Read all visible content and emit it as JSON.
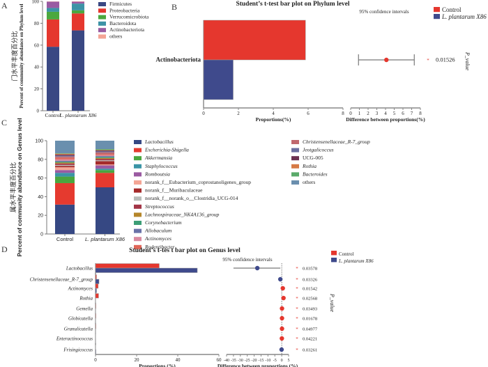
{
  "chart_data": [
    {
      "panel": "A",
      "type": "bar",
      "stacked": true,
      "title": "",
      "ylabel": "门水平丰度百分比 Percent of community abundance on Phylum level",
      "ylabel_cn": "门水平丰度百分比",
      "ylabel_en": "Percent of community abundance on Phylum level",
      "categories": [
        "Control",
        "L. plantarum X86"
      ],
      "category_parts": [
        [
          "Control",
          ""
        ],
        [
          "L. plantarum",
          " X86"
        ]
      ],
      "ylim": [
        0,
        100
      ],
      "yticks": [
        0,
        20,
        40,
        60,
        80,
        100
      ],
      "legend_position": "right",
      "series": [
        {
          "name": "Firmicutes",
          "color": "#3a4883",
          "values": [
            58.5,
            73.5
          ]
        },
        {
          "name": "Proteobacteria",
          "color": "#e5372e",
          "values": [
            25,
            15.5
          ]
        },
        {
          "name": "Verrucomicrobiota",
          "color": "#4ba83f",
          "values": [
            7,
            2.8
          ]
        },
        {
          "name": "Bacteroidota",
          "color": "#3d93a6",
          "values": [
            3.5,
            6.2
          ]
        },
        {
          "name": "Actinobacteriota",
          "color": "#995ba2",
          "values": [
            5.8,
            1.7
          ]
        },
        {
          "name": "others",
          "color": "#f4a495",
          "values": [
            0.2,
            0.3
          ]
        }
      ]
    },
    {
      "panel": "B",
      "type": "bar",
      "orientation": "horizontal",
      "title": "Student’s t-test bar plot on Phylum level",
      "categories": [
        "Actinobacteriota"
      ],
      "xlabel": "Proportions(%)",
      "xlim": [
        0,
        8
      ],
      "xticks": [
        0,
        2,
        4,
        6,
        8
      ],
      "series": [
        {
          "name": "Control",
          "color": "#e5372e",
          "values": [
            5.85
          ]
        },
        {
          "name": "L. plantarum X86",
          "color": "#3f4a8c",
          "values": [
            1.7
          ]
        }
      ],
      "diff": {
        "label": "95% confidence intervals",
        "xlabel": "Difference between proportions(%)",
        "xlim": [
          0,
          8
        ],
        "xticks": [
          0,
          1,
          2,
          3,
          4,
          5,
          6,
          7,
          8
        ],
        "points": [
          {
            "estimate": 4.1,
            "ci": [
              0.9,
              7.3
            ],
            "color": "#e5372e"
          }
        ]
      },
      "p_label": "P_value",
      "p_values": [
        "0.01526"
      ],
      "star": "*",
      "legend_position": "top-right"
    },
    {
      "panel": "C",
      "type": "bar",
      "stacked": true,
      "ylabel_cn": "属水平丰度百分比",
      "ylabel_en": "Percent of community abundance on Genus level",
      "categories": [
        "Control",
        "L. plantarum X86"
      ],
      "ylim": [
        0,
        100
      ],
      "yticks": [
        0,
        20,
        40,
        60,
        80,
        100
      ],
      "legend_position": "right",
      "series": [
        {
          "name": "Lactobacillus",
          "color": "#364883",
          "values": [
            31.5,
            50
          ]
        },
        {
          "name": "Escherichia-Shigella",
          "color": "#e53a2f",
          "values": [
            23,
            15.5
          ]
        },
        {
          "name": "Akkermansia",
          "color": "#4aa63e",
          "values": [
            7,
            3
          ]
        },
        {
          "name": "Staphylococcus",
          "color": "#3b95a6",
          "values": [
            4,
            1.5
          ]
        },
        {
          "name": "Romboutsia",
          "color": "#9a5aa1",
          "values": [
            3,
            3.5
          ]
        },
        {
          "name": "norank_f__Eubacterium_coprostanoligenes_group",
          "color": "#f4a696",
          "values": [
            3,
            1
          ]
        },
        {
          "name": "norank_f__Muribaculaceae",
          "color": "#a52a2a",
          "values": [
            1.5,
            3.5
          ]
        },
        {
          "name": "norank_f__norank_o__Clostridia_UCG-014",
          "color": "#b8bbb8",
          "values": [
            1,
            1
          ]
        },
        {
          "name": "Streptococcus",
          "color": "#a33546",
          "values": [
            1.5,
            1.5
          ]
        },
        {
          "name": "Lachnospiraceae_NK4A136_group",
          "color": "#b5862a",
          "values": [
            1,
            1
          ]
        },
        {
          "name": "Corynebacterium",
          "color": "#3c9e76",
          "values": [
            1,
            1
          ]
        },
        {
          "name": "Allobaculum",
          "color": "#6a72a8",
          "values": [
            1,
            1
          ]
        },
        {
          "name": "Actinomyces",
          "color": "#d98aa0",
          "values": [
            1.5,
            1
          ]
        },
        {
          "name": "Rodentibacter",
          "color": "#e06658",
          "values": [
            1.5,
            1
          ]
        },
        {
          "name": "Christensenellaceae_R-7_group",
          "color": "#c0686e",
          "values": [
            1.5,
            2
          ]
        },
        {
          "name": "Jeotgalicoccus",
          "color": "#6b6fa0",
          "values": [
            1,
            1
          ]
        },
        {
          "name": "UCG-005",
          "color": "#6b3050",
          "values": [
            1,
            1
          ]
        },
        {
          "name": "Rothia",
          "color": "#d67a45",
          "values": [
            1,
            0.5
          ]
        },
        {
          "name": "Bacteroides",
          "color": "#5aaa6a",
          "values": [
            0.5,
            1
          ]
        },
        {
          "name": "others",
          "color": "#6a8fae",
          "values": [
            13.5,
            9
          ]
        }
      ]
    },
    {
      "panel": "D",
      "type": "bar",
      "orientation": "horizontal",
      "title": "Student’s  t-tes t bar plot on Genus  level",
      "categories": [
        "Lactobacillus",
        "Christensenellaceae_R-7_group",
        "Actinomyces",
        "Rothia",
        "Gemella",
        "Globicatella",
        "Granulicatella",
        "Enteractinococcus",
        "Frisingicoccus"
      ],
      "xlabel": "Proportions (%)",
      "xlim": [
        0,
        60
      ],
      "xticks": [
        0,
        20,
        40,
        60
      ],
      "series": [
        {
          "name": "Control",
          "color": "#e5372e",
          "values": [
            31,
            0.5,
            1.3,
            1.5,
            0.2,
            0.2,
            0.2,
            0.1,
            0.1
          ]
        },
        {
          "name": "L. plantarum X86",
          "color": "#3f4a8c",
          "values": [
            49.5,
            1.7,
            0.5,
            0.1,
            0.05,
            0.05,
            0.05,
            0.05,
            0.2
          ]
        }
      ],
      "diff": {
        "label": "95% confidence intervals",
        "xlabel": "Difference between proportions (%)",
        "xlim": [
          -40,
          5
        ],
        "xticks": [
          -40,
          -35,
          -30,
          -25,
          -20,
          -15,
          -10,
          -5,
          0,
          5
        ],
        "points": [
          {
            "estimate": -17.7,
            "ci": [
              -35,
              -1
            ],
            "color": "#3f4a8c"
          },
          {
            "estimate": -1,
            "ci": [
              -1.5,
              -0.5
            ],
            "color": "#3f4a8c"
          },
          {
            "estimate": 0.8,
            "ci": [
              0.3,
              1.3
            ],
            "color": "#e5372e"
          },
          {
            "estimate": 1.3,
            "ci": [
              0.5,
              2
            ],
            "color": "#e5372e"
          },
          {
            "estimate": 0.2,
            "ci": [
              0.05,
              0.35
            ],
            "color": "#e5372e"
          },
          {
            "estimate": 0.2,
            "ci": [
              0.05,
              0.35
            ],
            "color": "#e5372e"
          },
          {
            "estimate": 0.2,
            "ci": [
              0.05,
              0.35
            ],
            "color": "#e5372e"
          },
          {
            "estimate": 0.1,
            "ci": [
              0.02,
              0.2
            ],
            "color": "#e5372e"
          },
          {
            "estimate": -0.1,
            "ci": [
              -0.2,
              0
            ],
            "color": "#3f4a8c"
          }
        ]
      },
      "p_label": "P_value",
      "p_values": [
        "0.03578",
        "0.03326",
        "0.01542",
        "0.02568",
        "0.03493",
        "0.01678",
        "0.04977",
        "0.04221",
        "0.03261"
      ],
      "star": "*",
      "legend_position": "top-right"
    }
  ],
  "panel_labels": [
    "A",
    "B",
    "C",
    "D"
  ]
}
